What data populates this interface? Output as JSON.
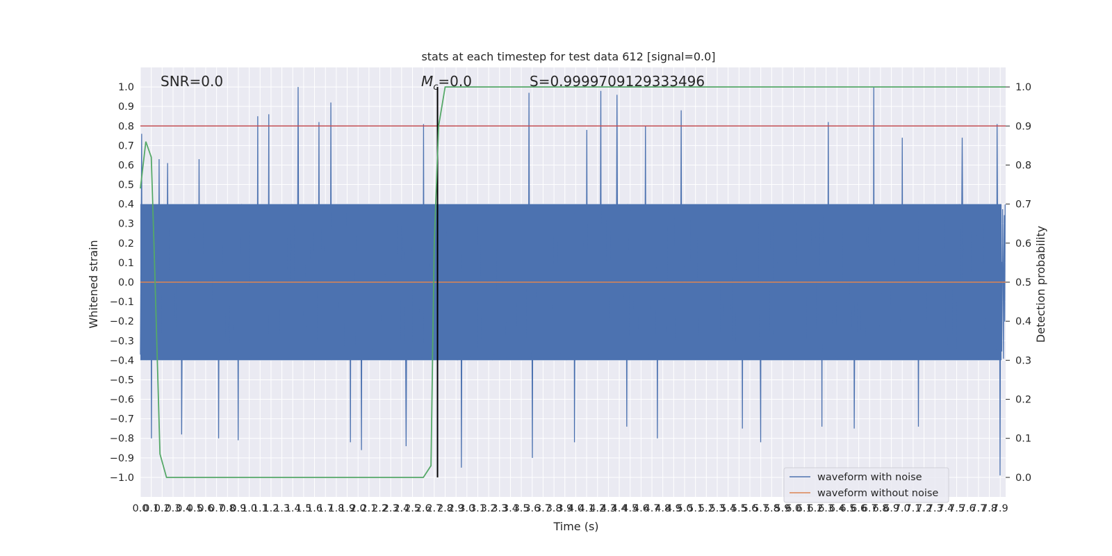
{
  "chart_data": {
    "type": "line",
    "title": "stats at each timestep for test data 612 [signal=0.0]",
    "xlabel": "Time (s)",
    "ylabel": "Whitened strain",
    "y2label": "Detection probability",
    "xlim": [
      0.0,
      7.95
    ],
    "ylim": [
      -1.1,
      1.1
    ],
    "y2lim": [
      -0.05,
      1.05
    ],
    "grid": true,
    "legend_position": "bottom-right",
    "colors": {
      "noise": "#4c72b0",
      "clean": "#dd8452",
      "prob": "#55a868",
      "threshold": "#c44e52",
      "marker": "#000000",
      "axes_bg": "#eaeaf2"
    },
    "x_ticks": [
      "0.0",
      "0.1",
      "0.2",
      "0.3",
      "0.4",
      "0.5",
      "0.6",
      "0.7",
      "0.8",
      "0.9",
      "1.0",
      "1.1",
      "1.2",
      "1.3",
      "1.4",
      "1.5",
      "1.6",
      "1.7",
      "1.8",
      "1.9",
      "2.0",
      "2.1",
      "2.2",
      "2.3",
      "2.4",
      "2.5",
      "2.6",
      "2.7",
      "2.8",
      "2.9",
      "3.0",
      "3.1",
      "3.2",
      "3.3",
      "3.4",
      "3.5",
      "3.6",
      "3.7",
      "3.8",
      "3.9",
      "4.0",
      "4.1",
      "4.2",
      "4.3",
      "4.4",
      "4.5",
      "4.6",
      "4.7",
      "4.8",
      "4.9",
      "5.0",
      "5.1",
      "5.2",
      "5.3",
      "5.4",
      "5.5",
      "5.6",
      "5.7",
      "5.8",
      "5.9",
      "6.0",
      "6.1",
      "6.2",
      "6.3",
      "6.4",
      "6.5",
      "6.6",
      "6.7",
      "6.8",
      "6.9",
      "7.0",
      "7.1",
      "7.2",
      "7.3",
      "7.4",
      "7.5",
      "7.6",
      "7.7",
      "7.8",
      "7.9"
    ],
    "y_ticks": [
      "1.0",
      "0.9",
      "0.8",
      "0.7",
      "0.6",
      "0.5",
      "0.4",
      "0.3",
      "0.2",
      "0.1",
      "0.0",
      "−0.1",
      "−0.2",
      "−0.3",
      "−0.4",
      "−0.5",
      "−0.6",
      "−0.7",
      "−0.8",
      "−0.9",
      "−1.0"
    ],
    "y2_ticks": [
      "1.0",
      "0.9",
      "0.8",
      "0.7",
      "0.6",
      "0.5",
      "0.4",
      "0.3",
      "0.2",
      "0.1",
      "0.0"
    ],
    "annotations": {
      "snr": "SNR=0.0",
      "mc_symbol": "M",
      "mc_sub": "c",
      "mc_value": "=0.0",
      "s": "S=0.9999709129333496"
    },
    "threshold": 0.8,
    "marker_time": 2.73,
    "series": [
      {
        "name": "waveform with noise",
        "axis": "left",
        "kind": "dense-noise",
        "samples_per_second": 256,
        "core_band": [
          -0.4,
          0.4
        ],
        "peaks": [
          [
            0.01,
            0.76
          ],
          [
            0.1,
            -0.8
          ],
          [
            0.17,
            0.63
          ],
          [
            0.25,
            0.61
          ],
          [
            0.38,
            -0.78
          ],
          [
            0.54,
            0.63
          ],
          [
            0.72,
            -0.8
          ],
          [
            0.9,
            -0.81
          ],
          [
            1.08,
            0.85
          ],
          [
            1.18,
            0.86
          ],
          [
            1.45,
            1.0
          ],
          [
            1.64,
            0.82
          ],
          [
            1.75,
            0.92
          ],
          [
            1.93,
            -0.82
          ],
          [
            2.03,
            -0.86
          ],
          [
            2.44,
            -0.84
          ],
          [
            2.6,
            0.81
          ],
          [
            2.95,
            -0.95
          ],
          [
            3.57,
            0.97
          ],
          [
            3.6,
            -0.9
          ],
          [
            3.99,
            -0.82
          ],
          [
            4.1,
            0.78
          ],
          [
            4.23,
            0.98
          ],
          [
            4.38,
            0.96
          ],
          [
            4.47,
            -0.74
          ],
          [
            4.64,
            0.8
          ],
          [
            4.75,
            -0.8
          ],
          [
            4.97,
            0.88
          ],
          [
            5.53,
            -0.75
          ],
          [
            5.7,
            -0.82
          ],
          [
            6.26,
            -0.74
          ],
          [
            6.32,
            0.82
          ],
          [
            6.56,
            -0.75
          ],
          [
            6.74,
            1.0
          ],
          [
            7.0,
            0.74
          ],
          [
            7.15,
            -0.74
          ],
          [
            7.55,
            0.74
          ],
          [
            7.87,
            0.81
          ],
          [
            7.9,
            -0.99
          ]
        ]
      },
      {
        "name": "waveform without noise",
        "axis": "left",
        "kind": "line",
        "values": [
          [
            0.0,
            0.0
          ],
          [
            7.95,
            0.0
          ]
        ]
      },
      {
        "name": "detection probability",
        "axis": "right",
        "kind": "line",
        "points": [
          [
            0.0,
            0.74
          ],
          [
            0.05,
            0.86
          ],
          [
            0.1,
            0.82
          ],
          [
            0.13,
            0.55
          ],
          [
            0.18,
            0.06
          ],
          [
            0.24,
            0.0
          ],
          [
            2.0,
            0.0
          ],
          [
            2.6,
            0.0
          ],
          [
            2.67,
            0.03
          ],
          [
            2.7,
            0.6
          ],
          [
            2.74,
            0.9
          ],
          [
            2.8,
            1.0
          ],
          [
            3.2,
            1.0
          ],
          [
            7.95,
            1.0
          ]
        ]
      }
    ]
  }
}
